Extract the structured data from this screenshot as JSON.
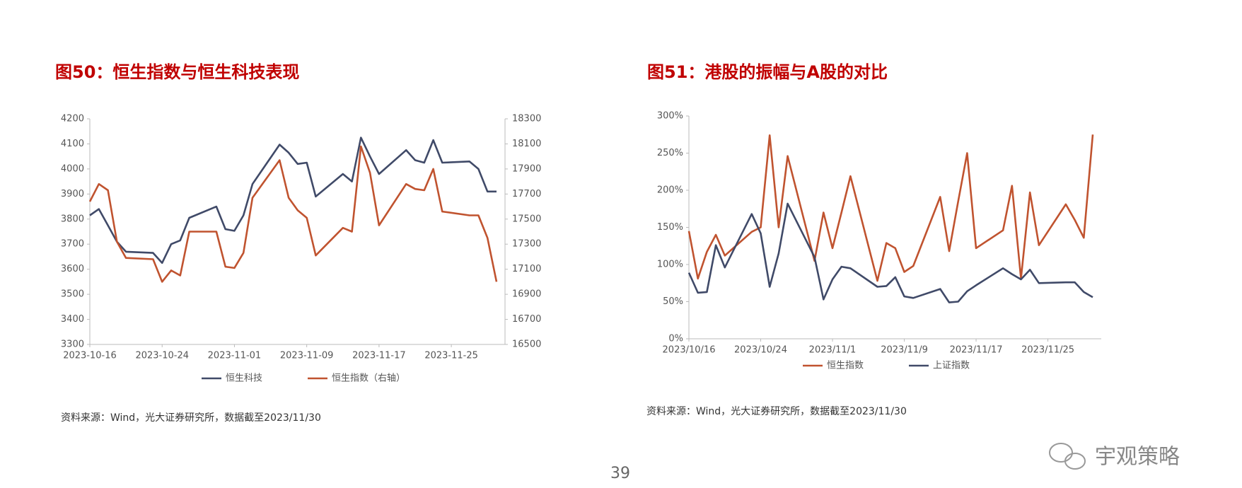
{
  "chart_data": [
    {
      "type": "line",
      "title": "图50：恒生指数与恒生科技表现",
      "source": "资料来源：Wind，光大证券研究所，数据截至2023/11/30",
      "x": [
        "2023-10-16",
        "2023-10-17",
        "2023-10-18",
        "2023-10-19",
        "2023-10-20",
        "2023-10-23",
        "2023-10-24",
        "2023-10-25",
        "2023-10-26",
        "2023-10-27",
        "2023-10-30",
        "2023-10-31",
        "2023-11-01",
        "2023-11-02",
        "2023-11-03",
        "2023-11-06",
        "2023-11-07",
        "2023-11-08",
        "2023-11-09",
        "2023-11-10",
        "2023-11-13",
        "2023-11-14",
        "2023-11-15",
        "2023-11-16",
        "2023-11-17",
        "2023-11-20",
        "2023-11-21",
        "2023-11-22",
        "2023-11-23",
        "2023-11-24",
        "2023-11-27",
        "2023-11-28",
        "2023-11-29",
        "2023-11-30"
      ],
      "xlim": [
        "2023-10-16",
        "2023-11-30"
      ],
      "xticks": [
        "2023-10-16",
        "2023-10-24",
        "2023-11-01",
        "2023-11-09",
        "2023-11-17",
        "2023-11-25"
      ],
      "ylim": [
        3300,
        4200
      ],
      "yticks": [
        3300,
        3400,
        3500,
        3600,
        3700,
        3800,
        3900,
        4000,
        4100,
        4200
      ],
      "y2lim": [
        16500,
        18300
      ],
      "y2ticks": [
        16500,
        16700,
        16900,
        17100,
        17300,
        17500,
        17700,
        17900,
        18100,
        18300
      ],
      "series": [
        {
          "name": "恒生科技",
          "color": "#404a68",
          "values": [
            3815,
            3840,
            3775,
            3710,
            3670,
            3665,
            3625,
            3700,
            3715,
            3805,
            3850,
            3760,
            3753,
            3815,
            3940,
            4097,
            4065,
            4020,
            4025,
            3890,
            3980,
            3950,
            4125,
            4050,
            3980,
            4075,
            4035,
            4025,
            4115,
            4025,
            4030,
            4000,
            3910,
            3910
          ]
        },
        {
          "name": "恒生指数（右轴）",
          "color": "#c0532f",
          "axis": "y2",
          "values": [
            17640,
            17780,
            17730,
            17320,
            17190,
            17180,
            17000,
            17090,
            17050,
            17400,
            17400,
            17120,
            17110,
            17230,
            17670,
            17970,
            17670,
            17570,
            17510,
            17210,
            17430,
            17400,
            18080,
            17870,
            17450,
            17780,
            17740,
            17730,
            17900,
            17560,
            17530,
            17530,
            17350,
            17000
          ]
        }
      ]
    },
    {
      "type": "line",
      "title": "图51：港股的振幅与A股的对比",
      "source": "资料来源：Wind，光大证券研究所，数据截至2023/11/30",
      "x": [
        "2023/10/16",
        "2023/10/17",
        "2023/10/18",
        "2023/10/19",
        "2023/10/20",
        "2023/10/23",
        "2023/10/24",
        "2023/10/25",
        "2023/10/26",
        "2023/10/27",
        "2023/10/30",
        "2023/10/31",
        "2023/11/1",
        "2023/11/2",
        "2023/11/3",
        "2023/11/6",
        "2023/11/7",
        "2023/11/8",
        "2023/11/9",
        "2023/11/10",
        "2023/11/13",
        "2023/11/14",
        "2023/11/15",
        "2023/11/16",
        "2023/11/17",
        "2023/11/20",
        "2023/11/21",
        "2023/11/22",
        "2023/11/23",
        "2023/11/24",
        "2023/11/27",
        "2023/11/28",
        "2023/11/29",
        "2023/11/30"
      ],
      "xlim": [
        "2023/10/16",
        "2023/11/30"
      ],
      "xticks": [
        "2023/10/16",
        "2023/10/24",
        "2023/11/1",
        "2023/11/9",
        "2023/11/17",
        "2023/11/25"
      ],
      "ylim": [
        0,
        300
      ],
      "yticks": [
        {
          "value": 0,
          "label": "0%"
        },
        {
          "value": 50,
          "label": "50%"
        },
        {
          "value": 100,
          "label": "100%"
        },
        {
          "value": 150,
          "label": "150%"
        },
        {
          "value": 200,
          "label": "200%"
        },
        {
          "value": 250,
          "label": "250%"
        },
        {
          "value": 300,
          "label": "300%"
        }
      ],
      "series": [
        {
          "name": "恒生指数",
          "color": "#c0532f",
          "values": [
            145,
            81,
            117,
            140,
            112,
            144,
            150,
            274,
            150,
            246,
            105,
            170,
            122,
            170,
            219,
            78,
            129,
            122,
            90,
            98,
            191,
            118,
            185,
            250,
            122,
            146,
            206,
            81,
            197,
            126,
            181,
            160,
            136,
            275
          ]
        },
        {
          "name": "上证指数",
          "color": "#404a68",
          "values": [
            89,
            62,
            63,
            126,
            96,
            168,
            142,
            70,
            115,
            182,
            110,
            53,
            80,
            97,
            95,
            70,
            71,
            83,
            57,
            55,
            67,
            49,
            50,
            64,
            72,
            95,
            87,
            80,
            93,
            75,
            76,
            76,
            63,
            56
          ]
        }
      ]
    }
  ],
  "page_number": "39",
  "watermark": "宇观策略"
}
